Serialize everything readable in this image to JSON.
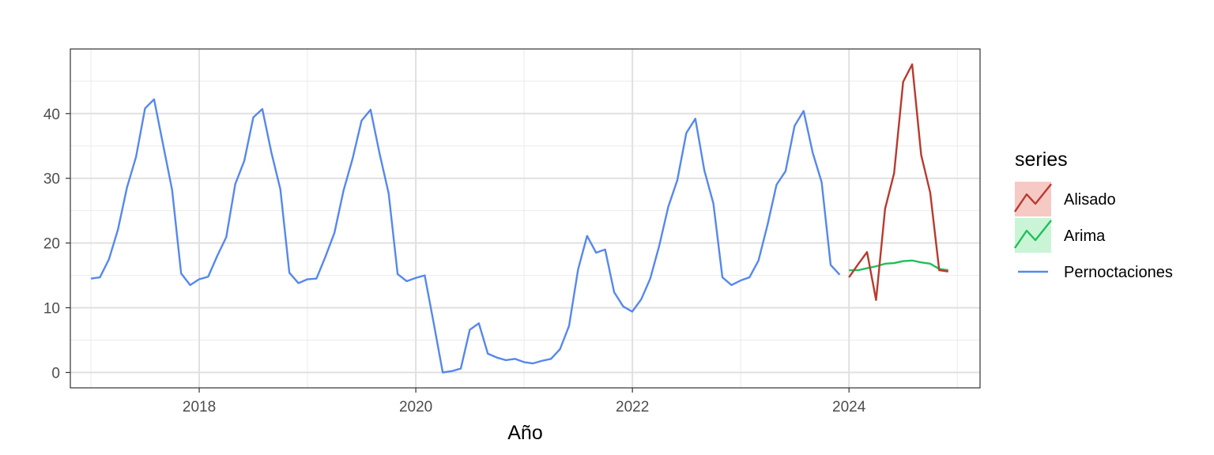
{
  "chart_data": {
    "type": "line",
    "title": "",
    "xlabel": "Año",
    "ylabel": "",
    "xlim": [
      2016.81,
      2025.21
    ],
    "ylim": [
      -2.38,
      49.98
    ],
    "x_ticks": [
      2018,
      2020,
      2022,
      2024
    ],
    "x_tick_labels": [
      "2018",
      "2020",
      "2022",
      "2024"
    ],
    "y_ticks": [
      0,
      10,
      20,
      30,
      40
    ],
    "y_tick_labels": [
      "0",
      "10",
      "20",
      "30",
      "40"
    ],
    "grid": true,
    "legend": {
      "title": "series",
      "position": "right"
    },
    "series": [
      {
        "name": "Alisado",
        "color": "#b83a2e",
        "fill": "#f6c9c5",
        "x_start": 2024,
        "step": 0.0833,
        "values": [
          14.7,
          16.7,
          18.6,
          11.2,
          25.3,
          30.8,
          44.9,
          47.6,
          33.6,
          27.8,
          15.8,
          15.6
        ]
      },
      {
        "name": "Arima",
        "color": "#1fbf5a",
        "fill": "#c9f5d6",
        "x_start": 2024,
        "step": 0.0833,
        "values": [
          15.8,
          15.8,
          16.1,
          16.4,
          16.8,
          16.9,
          17.2,
          17.3,
          17.0,
          16.8,
          16.0,
          15.8
        ]
      },
      {
        "name": "Pernoctaciones",
        "color": "#5588ee",
        "x_start": 2017,
        "step": 0.0833,
        "values": [
          14.5,
          14.7,
          17.5,
          22.1,
          28.6,
          33.3,
          40.8,
          42.2,
          35.2,
          28.2,
          15.3,
          13.5,
          14.4,
          14.8,
          18.0,
          20.9,
          29.1,
          32.7,
          39.4,
          40.7,
          34.0,
          28.3,
          15.4,
          13.8,
          14.4,
          14.5,
          17.9,
          21.6,
          28.1,
          33.0,
          38.9,
          40.6,
          33.8,
          27.7,
          15.2,
          14.1,
          14.6,
          15.0,
          7.6,
          0.0,
          0.2,
          0.6,
          6.6,
          7.6,
          2.9,
          2.3,
          1.9,
          2.1,
          1.6,
          1.4,
          1.8,
          2.1,
          3.6,
          7.2,
          15.9,
          21.1,
          18.5,
          19.0,
          12.4,
          10.2,
          9.4,
          11.3,
          14.5,
          19.6,
          25.6,
          29.7,
          37.0,
          39.2,
          31.2,
          26.1,
          14.7,
          13.5,
          14.2,
          14.7,
          17.3,
          22.8,
          29.0,
          31.1,
          38.1,
          40.4,
          34.0,
          29.4,
          16.6,
          15.1
        ]
      }
    ]
  }
}
